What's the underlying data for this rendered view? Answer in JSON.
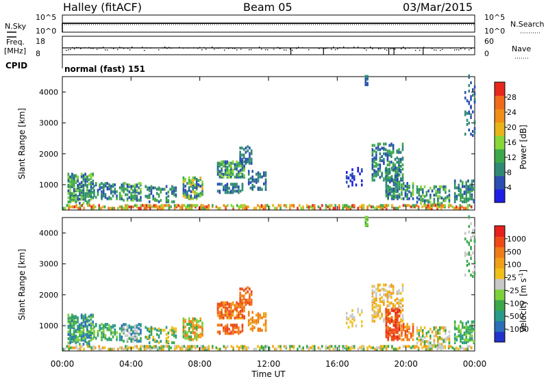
{
  "header": {
    "station": "Halley (fitACF)",
    "beam": "Beam 05",
    "date": "03/Mar/2015"
  },
  "left_labels": {
    "nsky": "N.Sky",
    "freq_line1": "Freq.",
    "freq_line2": "[MHz]",
    "cpid": "CPID"
  },
  "right_labels": {
    "nsearch": "N.Search",
    "nave": "Nave"
  },
  "cpid_text": "normal (fast) 151",
  "chart_data": [
    {
      "type": "line",
      "name": "noise",
      "y_left_ticks": [
        "10^5",
        "10^0"
      ],
      "y_right_ticks": [
        "10^5",
        "10^0"
      ]
    },
    {
      "type": "scatter",
      "name": "frequency-nave",
      "y_left_ticks": [
        "18",
        "8"
      ],
      "y_right_ticks": [
        "60",
        "0"
      ]
    },
    {
      "type": "heatmap",
      "name": "power",
      "ylabel": "Slant Range [km]",
      "ylim": [
        180,
        4500
      ],
      "y_ticks": [
        "1000",
        "2000",
        "3000",
        "4000"
      ],
      "colorbar_label": "Power [dB]",
      "colorbar_ticks": [
        "4",
        "8",
        "12",
        "16",
        "20",
        "24",
        "28"
      ],
      "colors": [
        "#1e1ee6",
        "#2a4fb0",
        "#2f8a74",
        "#3ca84b",
        "#88d63a",
        "#e8b41a",
        "#f08e18",
        "#ef6a1a",
        "#e6281c"
      ]
    },
    {
      "type": "heatmap",
      "name": "velocity",
      "ylabel": "Slant Range [km]",
      "xlabel": "Time UT",
      "ylim": [
        180,
        4500
      ],
      "y_ticks": [
        "1000",
        "2000",
        "3000",
        "4000"
      ],
      "x_ticks": [
        "00:00",
        "04:00",
        "08:00",
        "12:00",
        "16:00",
        "20:00",
        "00:00"
      ],
      "colorbar_label_main": "Velocity",
      "colorbar_label_unit": "[m s",
      "colorbar_ticks": [
        "1000",
        "500",
        "100",
        "25",
        "-25",
        "-100",
        "-500",
        "-1000"
      ],
      "colors": [
        "#2233cc",
        "#2a6fb8",
        "#2a9a8a",
        "#3aa84b",
        "#7ed03a",
        "#c8c8c8",
        "#f0c01a",
        "#f0a018",
        "#f07c18",
        "#ee4a18",
        "#e6201c"
      ]
    }
  ]
}
